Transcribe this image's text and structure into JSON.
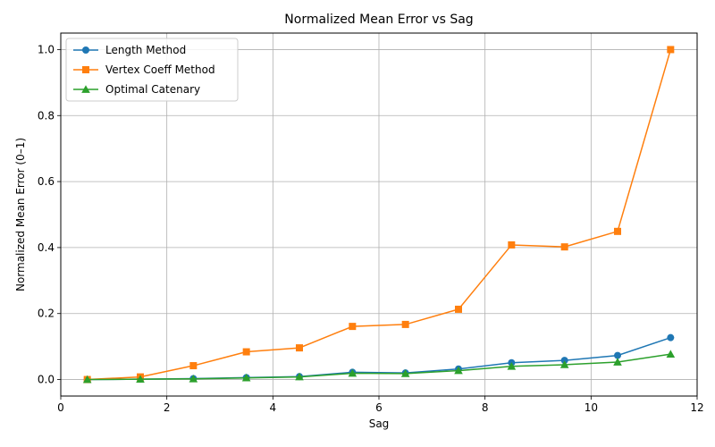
{
  "chart_data": {
    "type": "line",
    "title": "Normalized Mean Error vs Sag",
    "xlabel": "Sag",
    "ylabel": "Normalized Mean Error (0–1)",
    "xlim": [
      0,
      12
    ],
    "ylim": [
      -0.05,
      1.05
    ],
    "xticks": [
      0,
      2,
      4,
      6,
      8,
      10,
      12
    ],
    "yticks": [
      0.0,
      0.2,
      0.4,
      0.6,
      0.8,
      1.0
    ],
    "grid": true,
    "legend_position": "top-left",
    "x": [
      0.5,
      1.5,
      2.5,
      3.5,
      4.5,
      5.5,
      6.5,
      7.5,
      8.5,
      9.5,
      10.5,
      11.5
    ],
    "series": [
      {
        "name": "Length Method",
        "color": "#1f77b4",
        "marker": "circle",
        "values": [
          0.0,
          0.001,
          0.003,
          0.006,
          0.009,
          0.022,
          0.02,
          0.032,
          0.051,
          0.058,
          0.073,
          0.127
        ]
      },
      {
        "name": "Vertex Coeff Method",
        "color": "#ff7f0e",
        "marker": "square",
        "values": [
          0.0,
          0.008,
          0.042,
          0.084,
          0.096,
          0.161,
          0.167,
          0.213,
          0.408,
          0.402,
          0.449,
          1.0
        ]
      },
      {
        "name": "Optimal Catenary",
        "color": "#2ca02c",
        "marker": "triangle",
        "values": [
          0.0,
          0.001,
          0.002,
          0.005,
          0.008,
          0.019,
          0.018,
          0.027,
          0.04,
          0.045,
          0.053,
          0.077
        ]
      }
    ]
  }
}
